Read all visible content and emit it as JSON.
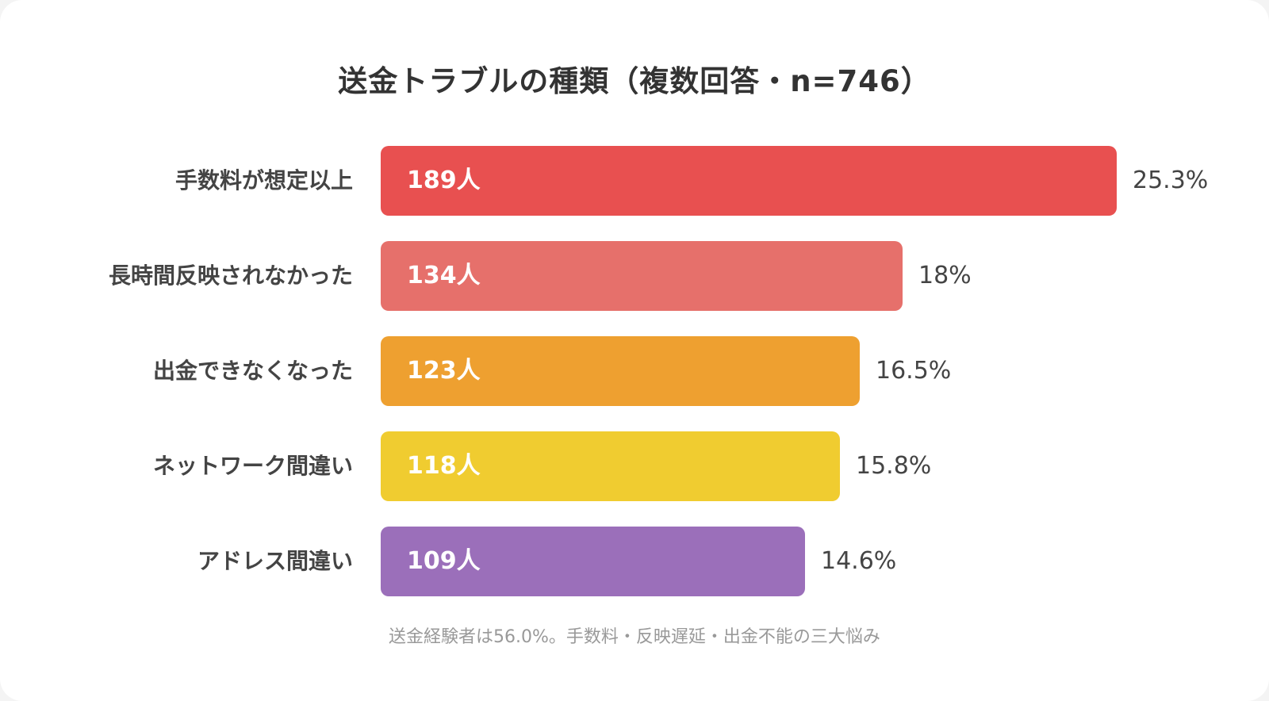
{
  "chart_data": {
    "type": "bar",
    "orientation": "horizontal",
    "title": "送金トラブルの種類（複数回答・n=746）",
    "footnote": "送金経験者は56.0%。手数料・反映遅延・出金不能の三大悩み",
    "count_unit": "人",
    "categories": [
      "手数料が想定以上",
      "長時間反映されなかった",
      "出金できなくなった",
      "ネットワーク間違い",
      "アドレス間違い"
    ],
    "values": [
      189,
      134,
      123,
      118,
      109
    ],
    "percent_labels": [
      "25.3%",
      "18%",
      "16.5%",
      "15.8%",
      "14.6%"
    ],
    "colors": [
      "#e85050",
      "#e6706b",
      "#eea030",
      "#f0cc30",
      "#9b6fba"
    ],
    "xlim": [
      0,
      189
    ]
  }
}
